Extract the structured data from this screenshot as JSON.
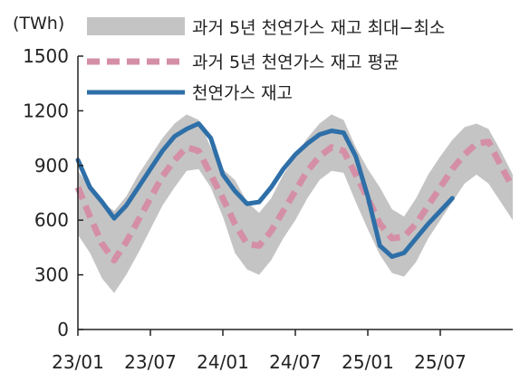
{
  "chart_data": {
    "type": "area",
    "unit_label": "(TWh)",
    "ylim": [
      0,
      1500
    ],
    "y_ticks": [
      0,
      300,
      600,
      900,
      1200,
      1500
    ],
    "x_tick_labels": [
      "23/01",
      "23/07",
      "24/01",
      "24/07",
      "25/01",
      "25/07"
    ],
    "x_tick_dates": [
      "2023-01",
      "2023-07",
      "2024-01",
      "2024-07",
      "2025-01",
      "2025-07"
    ],
    "x_range": [
      "2023-01",
      "2026-01"
    ],
    "grid": false,
    "legend_position": "top-right",
    "legend": [
      {
        "key": "range",
        "label": "과거 5년 천연가스 재고 최대−최소"
      },
      {
        "key": "avg",
        "label": "과거 5년 천연가스 재고 평균"
      },
      {
        "key": "actual",
        "label": "천연가스 재고"
      }
    ],
    "colors": {
      "range": "#c4c4c4",
      "avg": "#d48fa6",
      "actual": "#2e6fa8",
      "axis": "#222222"
    },
    "series": {
      "range": {
        "x": [
          "2023-01",
          "2023-02",
          "2023-03",
          "2023-04",
          "2023-05",
          "2023-06",
          "2023-07",
          "2023-08",
          "2023-09",
          "2023-10",
          "2023-11",
          "2023-12",
          "2024-01",
          "2024-02",
          "2024-03",
          "2024-04",
          "2024-05",
          "2024-06",
          "2024-07",
          "2024-08",
          "2024-09",
          "2024-10",
          "2024-11",
          "2024-12",
          "2025-01",
          "2025-02",
          "2025-03",
          "2025-04",
          "2025-05",
          "2025-06",
          "2025-07",
          "2025-08",
          "2025-09",
          "2025-10",
          "2025-11",
          "2025-12",
          "2026-01"
        ],
        "max": [
          870,
          780,
          700,
          650,
          730,
          850,
          950,
          1050,
          1130,
          1180,
          1150,
          1000,
          880,
          820,
          700,
          640,
          720,
          850,
          950,
          1050,
          1130,
          1180,
          1150,
          1000,
          880,
          780,
          660,
          620,
          720,
          850,
          950,
          1040,
          1110,
          1130,
          1100,
          980,
          850
        ],
        "min": [
          520,
          420,
          280,
          200,
          300,
          420,
          550,
          680,
          780,
          870,
          880,
          780,
          620,
          420,
          330,
          300,
          380,
          500,
          600,
          720,
          820,
          870,
          860,
          700,
          550,
          410,
          310,
          290,
          370,
          500,
          600,
          700,
          800,
          850,
          800,
          700,
          600
        ]
      },
      "avg": {
        "x": [
          "2023-01",
          "2023-02",
          "2023-03",
          "2023-04",
          "2023-05",
          "2023-06",
          "2023-07",
          "2023-08",
          "2023-09",
          "2023-10",
          "2023-11",
          "2023-12",
          "2024-01",
          "2024-02",
          "2024-03",
          "2024-04",
          "2024-05",
          "2024-06",
          "2024-07",
          "2024-08",
          "2024-09",
          "2024-10",
          "2024-11",
          "2024-12",
          "2025-01",
          "2025-02",
          "2025-03",
          "2025-04",
          "2025-05",
          "2025-06",
          "2025-07",
          "2025-08",
          "2025-09",
          "2025-10",
          "2025-11",
          "2025-12",
          "2026-01"
        ],
        "values": [
          780,
          620,
          470,
          380,
          480,
          600,
          720,
          840,
          930,
          1000,
          980,
          850,
          720,
          580,
          470,
          460,
          540,
          650,
          760,
          870,
          950,
          1000,
          980,
          850,
          720,
          580,
          500,
          510,
          580,
          680,
          780,
          880,
          960,
          1020,
          1030,
          900,
          780
        ]
      },
      "actual": {
        "x": [
          "2023-01",
          "2023-02",
          "2023-03",
          "2023-04",
          "2023-05",
          "2023-06",
          "2023-07",
          "2023-08",
          "2023-09",
          "2023-10",
          "2023-11",
          "2023-12",
          "2024-01",
          "2024-02",
          "2024-03",
          "2024-04",
          "2024-05",
          "2024-06",
          "2024-07",
          "2024-08",
          "2024-09",
          "2024-10",
          "2024-11",
          "2024-12",
          "2025-01",
          "2025-02",
          "2025-03",
          "2025-04",
          "2025-05",
          "2025-06",
          "2025-07",
          "2025-08"
        ],
        "values": [
          930,
          780,
          700,
          610,
          680,
          780,
          880,
          980,
          1060,
          1100,
          1130,
          1050,
          850,
          760,
          690,
          700,
          780,
          880,
          960,
          1020,
          1070,
          1090,
          1080,
          950,
          730,
          460,
          400,
          420,
          500,
          580,
          650,
          720
        ]
      }
    }
  }
}
